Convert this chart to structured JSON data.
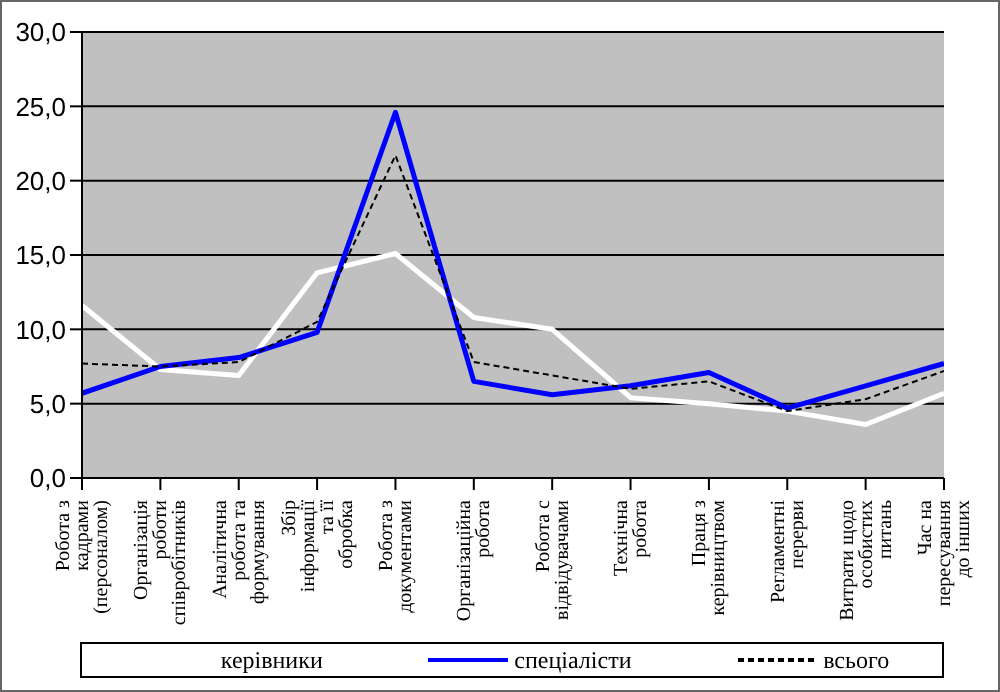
{
  "chart_data": {
    "type": "line",
    "categories": [
      "Робота з кадрами (персоналом)",
      "Організація роботи співробітників",
      "Аналітична робота та формування",
      "Збір інформації та її обробка",
      "Робота з документами",
      "Організаційна робота",
      "Робота с відвідувачами",
      "Технічна робота",
      "Праця з керівництвом",
      "Регламентні перерви",
      "Витрати щодо особистих питань",
      "Час на пересування до інших"
    ],
    "series": [
      {
        "name": "керівники",
        "color": "#ffffff",
        "values": [
          11.6,
          7.3,
          6.9,
          13.8,
          15.1,
          10.8,
          10.0,
          5.4,
          5.0,
          4.5,
          3.6,
          5.7
        ]
      },
      {
        "name": "спеціалісти",
        "color": "#0000ff",
        "values": [
          5.7,
          7.5,
          8.1,
          9.8,
          24.6,
          6.5,
          5.6,
          6.2,
          7.1,
          4.7,
          6.2,
          7.7
        ]
      },
      {
        "name": "всього",
        "color": "#000000",
        "line_style": "dashed",
        "values": [
          7.7,
          7.5,
          7.8,
          10.5,
          21.7,
          7.8,
          6.9,
          6.0,
          6.5,
          4.5,
          5.3,
          7.2
        ]
      }
    ],
    "ylim": [
      0,
      30
    ],
    "yticks": [
      {
        "value": 0,
        "label": "0,0"
      },
      {
        "value": 5,
        "label": "5,0"
      },
      {
        "value": 10,
        "label": "10,0"
      },
      {
        "value": 15,
        "label": "15,0"
      },
      {
        "value": 20,
        "label": "20,0"
      },
      {
        "value": 25,
        "label": "25,0"
      },
      {
        "value": 30,
        "label": "30,0"
      }
    ],
    "grid": "y",
    "legend": "bottom"
  }
}
